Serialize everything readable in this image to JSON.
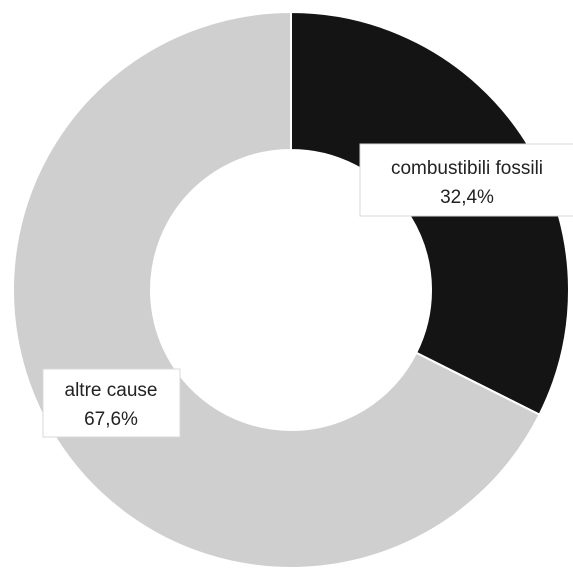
{
  "chart_data": {
    "type": "pie",
    "donut": true,
    "title": "",
    "slices": [
      {
        "label": "combustibili fossili",
        "value": 32.4,
        "value_label": "32,4%",
        "color": "#141414"
      },
      {
        "label": "altre cause",
        "value": 67.6,
        "value_label": "67,6%",
        "color": "#d0cfcf"
      }
    ],
    "start_angle": "12 o'clock",
    "direction": "clockwise",
    "legend": "none"
  }
}
